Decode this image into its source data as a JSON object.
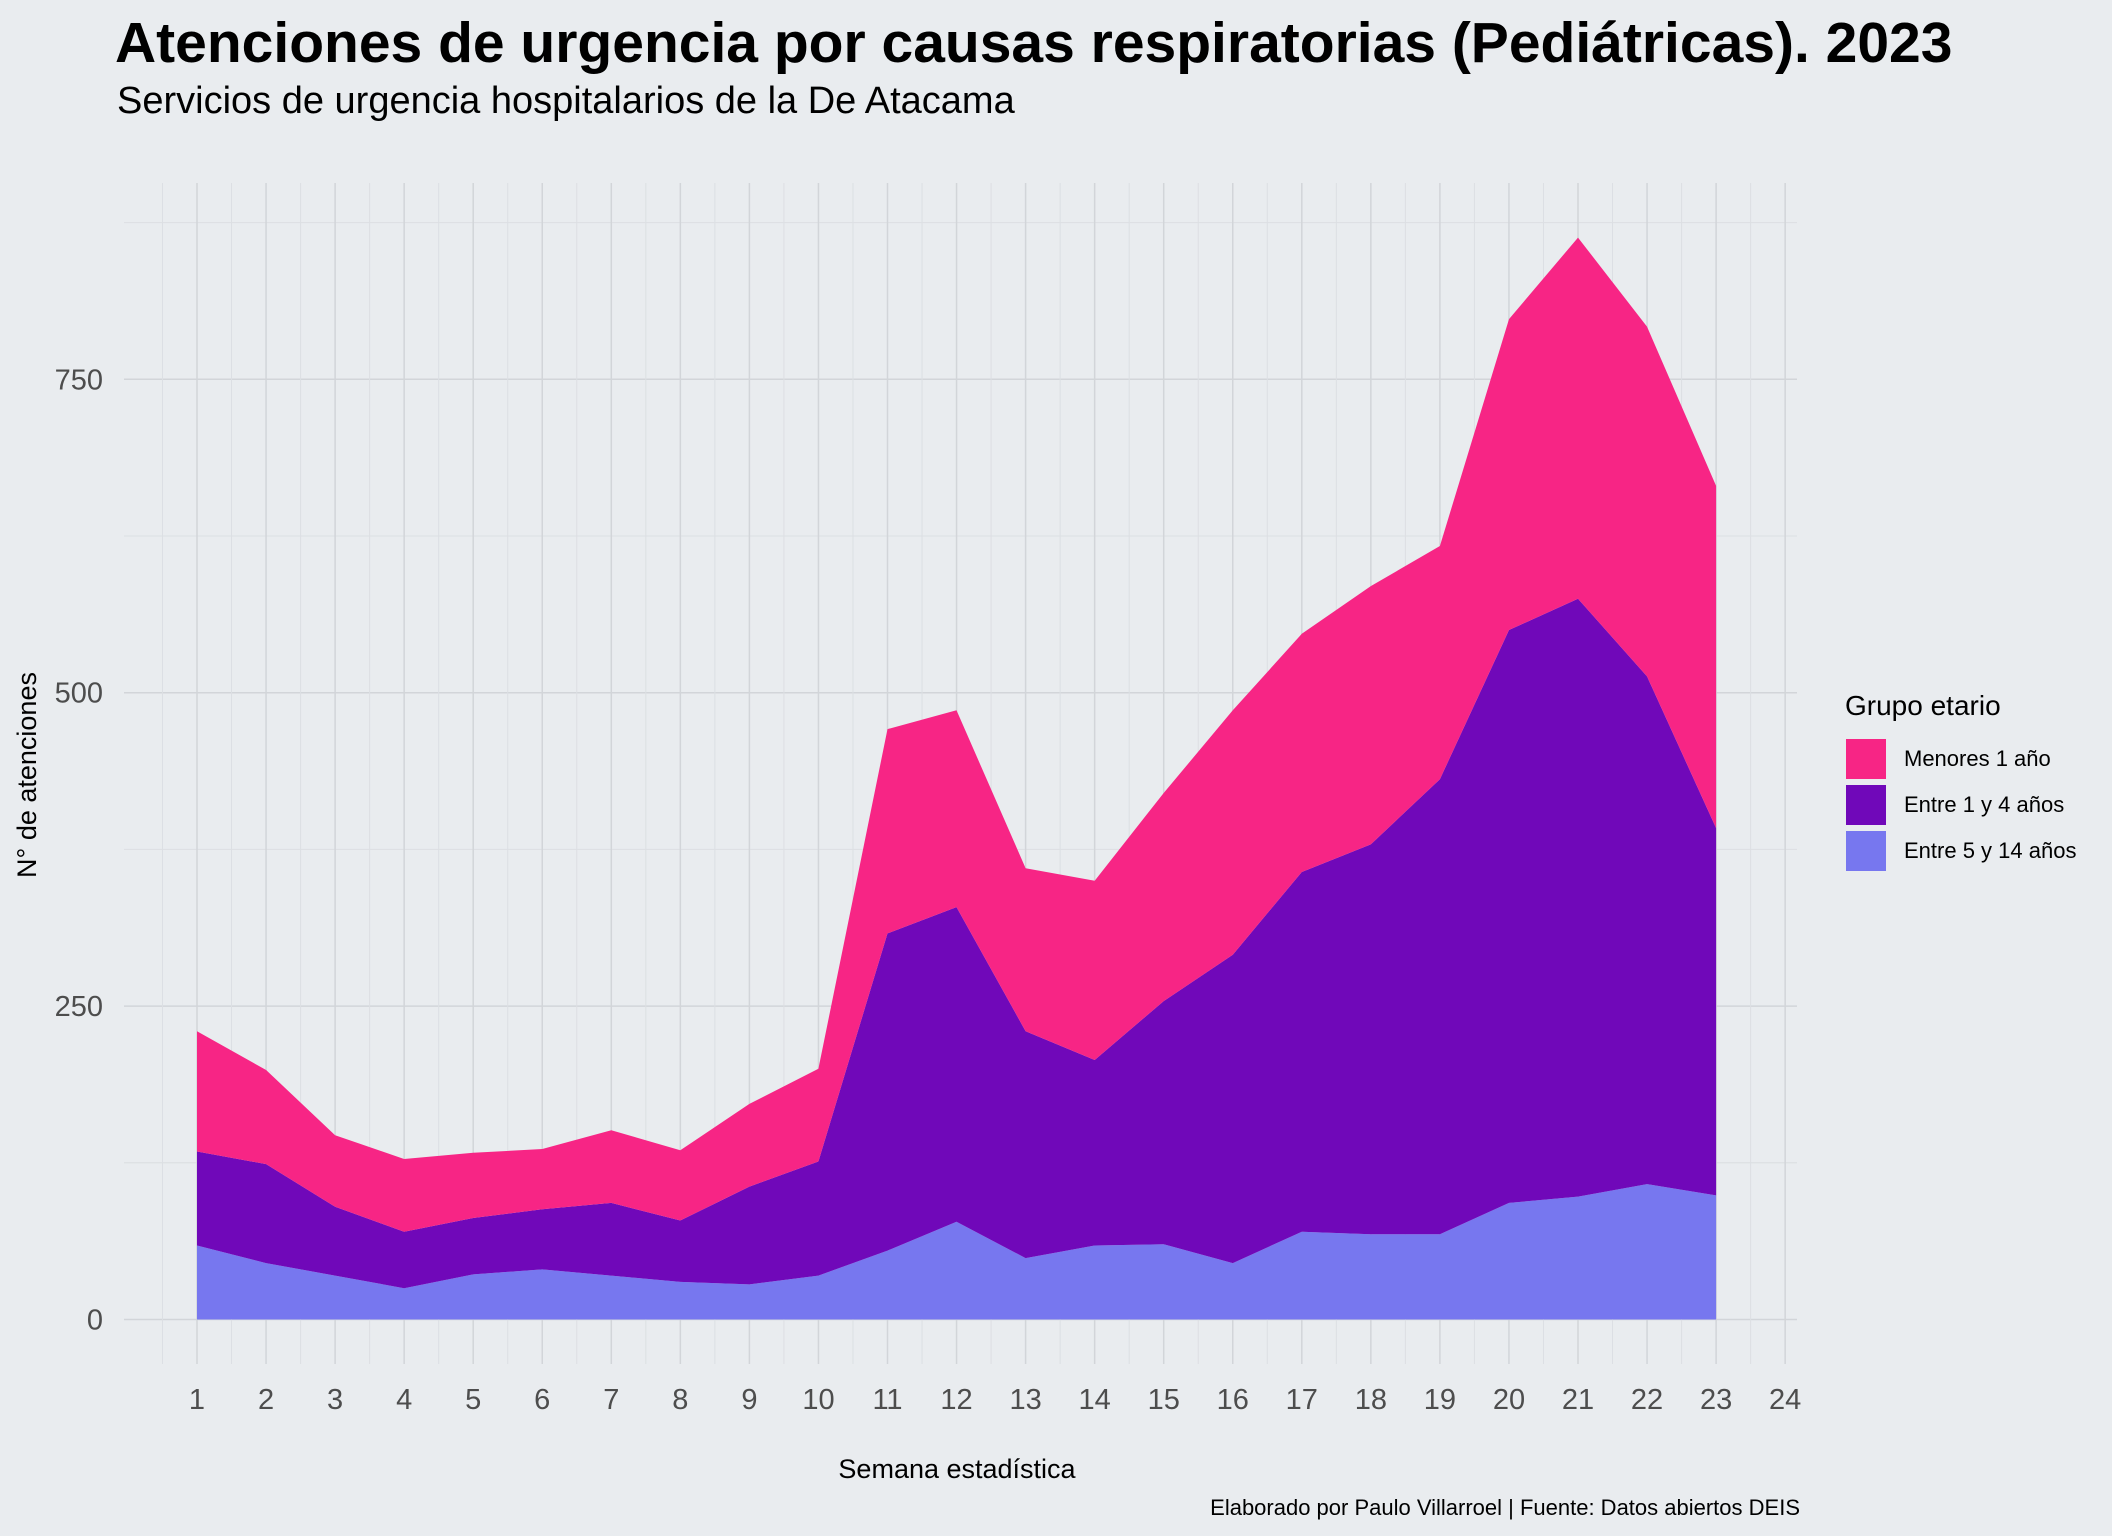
{
  "chart_data": {
    "type": "area",
    "stacked": true,
    "title": "Atenciones de urgencia por causas respiratorias (Pediátricas). 2023",
    "subtitle": "Servicios de urgencia hospitalarios de la De Atacama",
    "caption": "Elaborado por Paulo Villarroel | Fuente: Datos abiertos DEIS",
    "xlabel": "Semana estadística",
    "ylabel": "N° de atenciones",
    "xlim": [
      0.5,
      24
    ],
    "ylim": [
      -38,
      905
    ],
    "xticks": [
      "1",
      "2",
      "3",
      "4",
      "5",
      "6",
      "7",
      "8",
      "9",
      "10",
      "11",
      "12",
      "13",
      "14",
      "15",
      "16",
      "17",
      "18",
      "19",
      "20",
      "21",
      "22",
      "23",
      "24"
    ],
    "yticks": [
      {
        "value": 0,
        "label": "0"
      },
      {
        "value": 250,
        "label": "250"
      },
      {
        "value": 500,
        "label": "500"
      },
      {
        "value": 750,
        "label": "750"
      }
    ],
    "grid": true,
    "legend": {
      "title": "Grupo etario",
      "position": "right"
    },
    "x": [
      1,
      2,
      3,
      4,
      5,
      6,
      7,
      8,
      9,
      10,
      11,
      12,
      13,
      14,
      15,
      16,
      17,
      18,
      19,
      20,
      21,
      22,
      23
    ],
    "series": [
      {
        "name": "Entre 5 y 14 años",
        "color": "#7777ef",
        "values": [
          59,
          45,
          35,
          25,
          36,
          40,
          35,
          30,
          28,
          35,
          55,
          78,
          49,
          59,
          60,
          45,
          70,
          68,
          68,
          93,
          98,
          108,
          99
        ]
      },
      {
        "name": "Entre 1 y 4 años",
        "color": "#7008b9",
        "values": [
          75,
          79,
          55,
          45,
          45,
          48,
          58,
          49,
          78,
          91,
          253,
          251,
          181,
          148,
          194,
          246,
          287,
          311,
          363,
          457,
          477,
          405,
          293
        ]
      },
      {
        "name": "Menores 1 año",
        "color": "#f72585",
        "values": [
          96,
          75,
          57,
          58,
          52,
          48,
          58,
          56,
          66,
          74,
          163,
          157,
          130,
          143,
          166,
          195,
          190,
          206,
          186,
          248,
          288,
          279,
          273
        ]
      }
    ]
  }
}
